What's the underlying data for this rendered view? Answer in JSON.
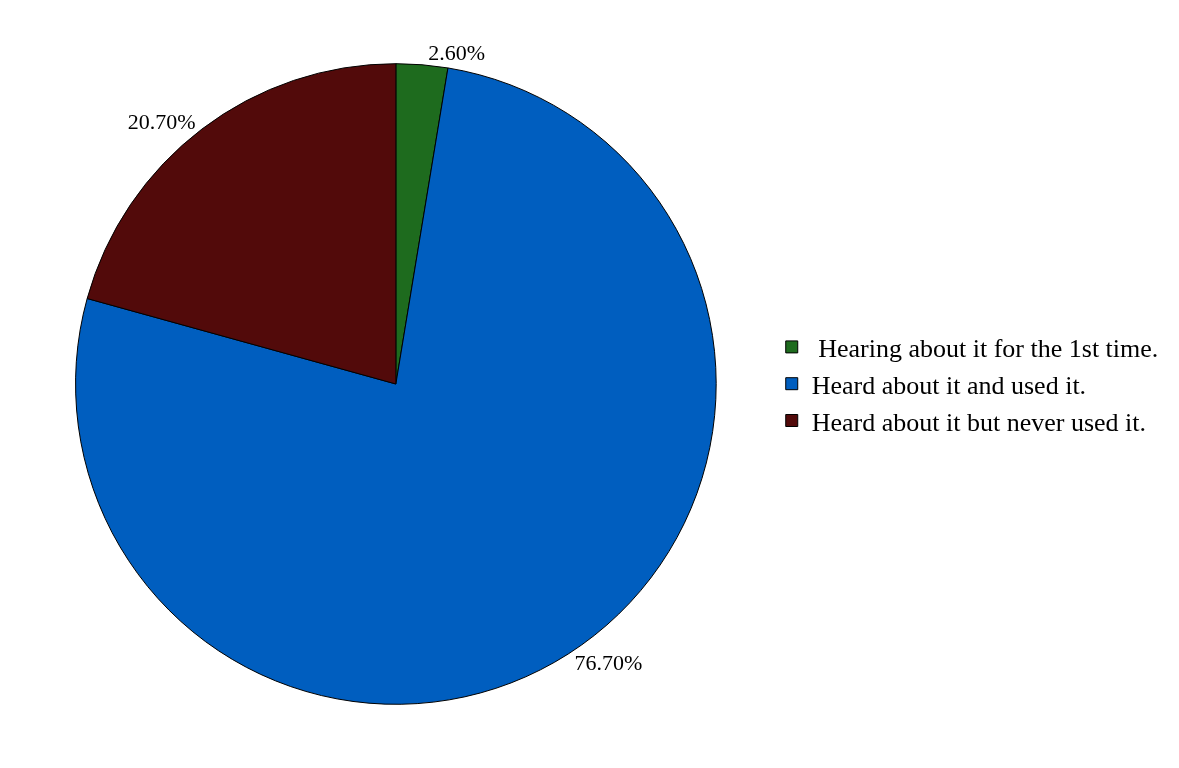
{
  "chart_data": {
    "type": "pie",
    "categories": [
      " Hearing about it for the 1st time.",
      "Heard about it and used it.",
      "Heard about it but never used it."
    ],
    "values": [
      2.6,
      76.7,
      20.7
    ],
    "value_labels": [
      "2.60%",
      "76.70%",
      "20.70%"
    ],
    "colors": [
      "#1e6b1e",
      "#005ebf",
      "#520a0a"
    ],
    "legend": "right"
  }
}
